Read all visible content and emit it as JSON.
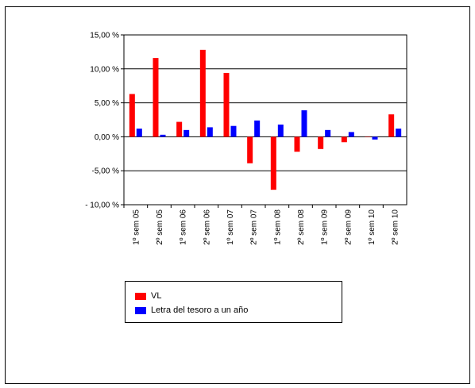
{
  "chart_data": {
    "type": "bar",
    "categories": [
      "1º sem 05",
      "2º sem 05",
      "1º sem 06",
      "2º sem 06",
      "1º sem 07",
      "2º sem 07",
      "1º sem 08",
      "2º sem 08",
      "1º sem 09",
      "2º sem 09",
      "1º sem 10",
      "2º sem 10"
    ],
    "series": [
      {
        "name": "VL",
        "color": "#ff0000",
        "values": [
          6.3,
          11.6,
          2.2,
          12.8,
          9.4,
          -3.9,
          -7.8,
          -2.2,
          -1.8,
          -0.8,
          0.0,
          3.3
        ]
      },
      {
        "name": "Letra del tesoro a un año",
        "color": "#0000ff",
        "values": [
          1.2,
          0.3,
          1.0,
          1.4,
          1.6,
          2.4,
          1.8,
          3.9,
          1.0,
          0.7,
          -0.4,
          1.2
        ]
      }
    ],
    "ylim": [
      -10,
      15
    ],
    "yticks": [
      15,
      10,
      5,
      0,
      -5,
      -10
    ],
    "ytick_labels": [
      "15,00 %",
      "10,00 %",
      "5,00 %",
      "0,00 %",
      "-5,00 %",
      "- 10,00 %"
    ],
    "grid": true,
    "legend_position": "bottom"
  }
}
